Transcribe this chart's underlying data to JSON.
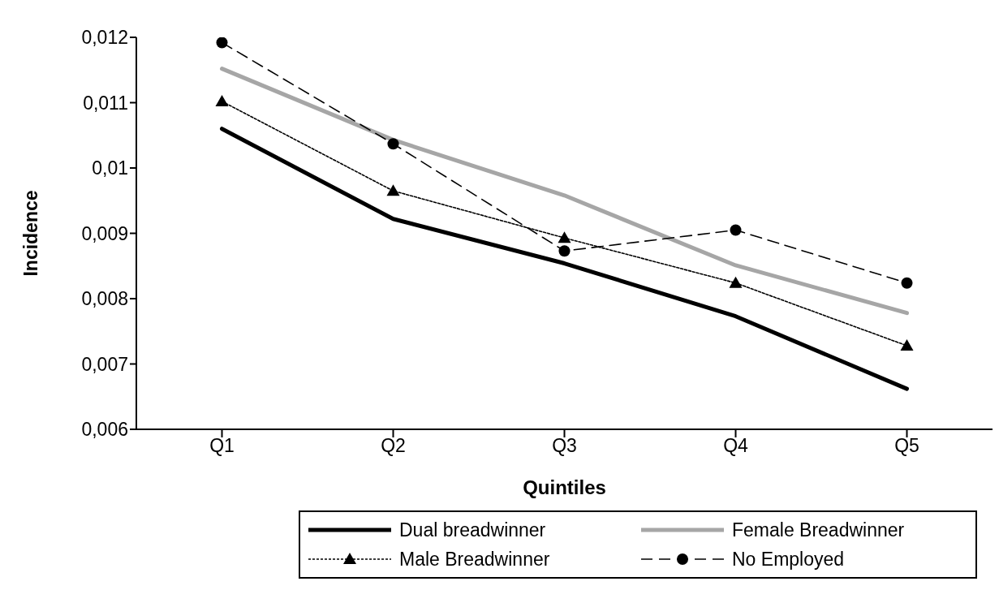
{
  "chart_data": {
    "type": "line",
    "xlabel": "Quintiles",
    "ylabel": "Incidence",
    "categories": [
      "Q1",
      "Q2",
      "Q3",
      "Q4",
      "Q5"
    ],
    "series": [
      {
        "name": "Dual breadwinner",
        "color": "#000000",
        "line_style": "solid",
        "marker": "none",
        "values": [
          0.0106,
          0.00922,
          0.00854,
          0.00773,
          0.00662
        ]
      },
      {
        "name": "Female Breadwinner",
        "color": "#a6a6a6",
        "line_style": "solid",
        "marker": "none",
        "values": [
          0.01152,
          0.01043,
          0.00958,
          0.00851,
          0.00778
        ]
      },
      {
        "name": "Male Breadwinner",
        "color": "#000000",
        "line_style": "dotted",
        "marker": "triangle",
        "values": [
          0.01102,
          0.00965,
          0.00893,
          0.00824,
          0.00728
        ]
      },
      {
        "name": "No Employed",
        "color": "#000000",
        "line_style": "dashed",
        "marker": "circle",
        "values": [
          0.01192,
          0.01037,
          0.00873,
          0.00905,
          0.00824
        ]
      }
    ],
    "ylim": [
      0.006,
      0.012
    ],
    "yticks": [
      {
        "value": 0.006,
        "label": "0,006"
      },
      {
        "value": 0.007,
        "label": "0,007"
      },
      {
        "value": 0.008,
        "label": "0,008"
      },
      {
        "value": 0.009,
        "label": "0,009"
      },
      {
        "value": 0.01,
        "label": "0,01"
      },
      {
        "value": 0.011,
        "label": "0,011"
      },
      {
        "value": 0.012,
        "label": "0,012"
      }
    ],
    "grid": false,
    "legend": "bottom"
  }
}
